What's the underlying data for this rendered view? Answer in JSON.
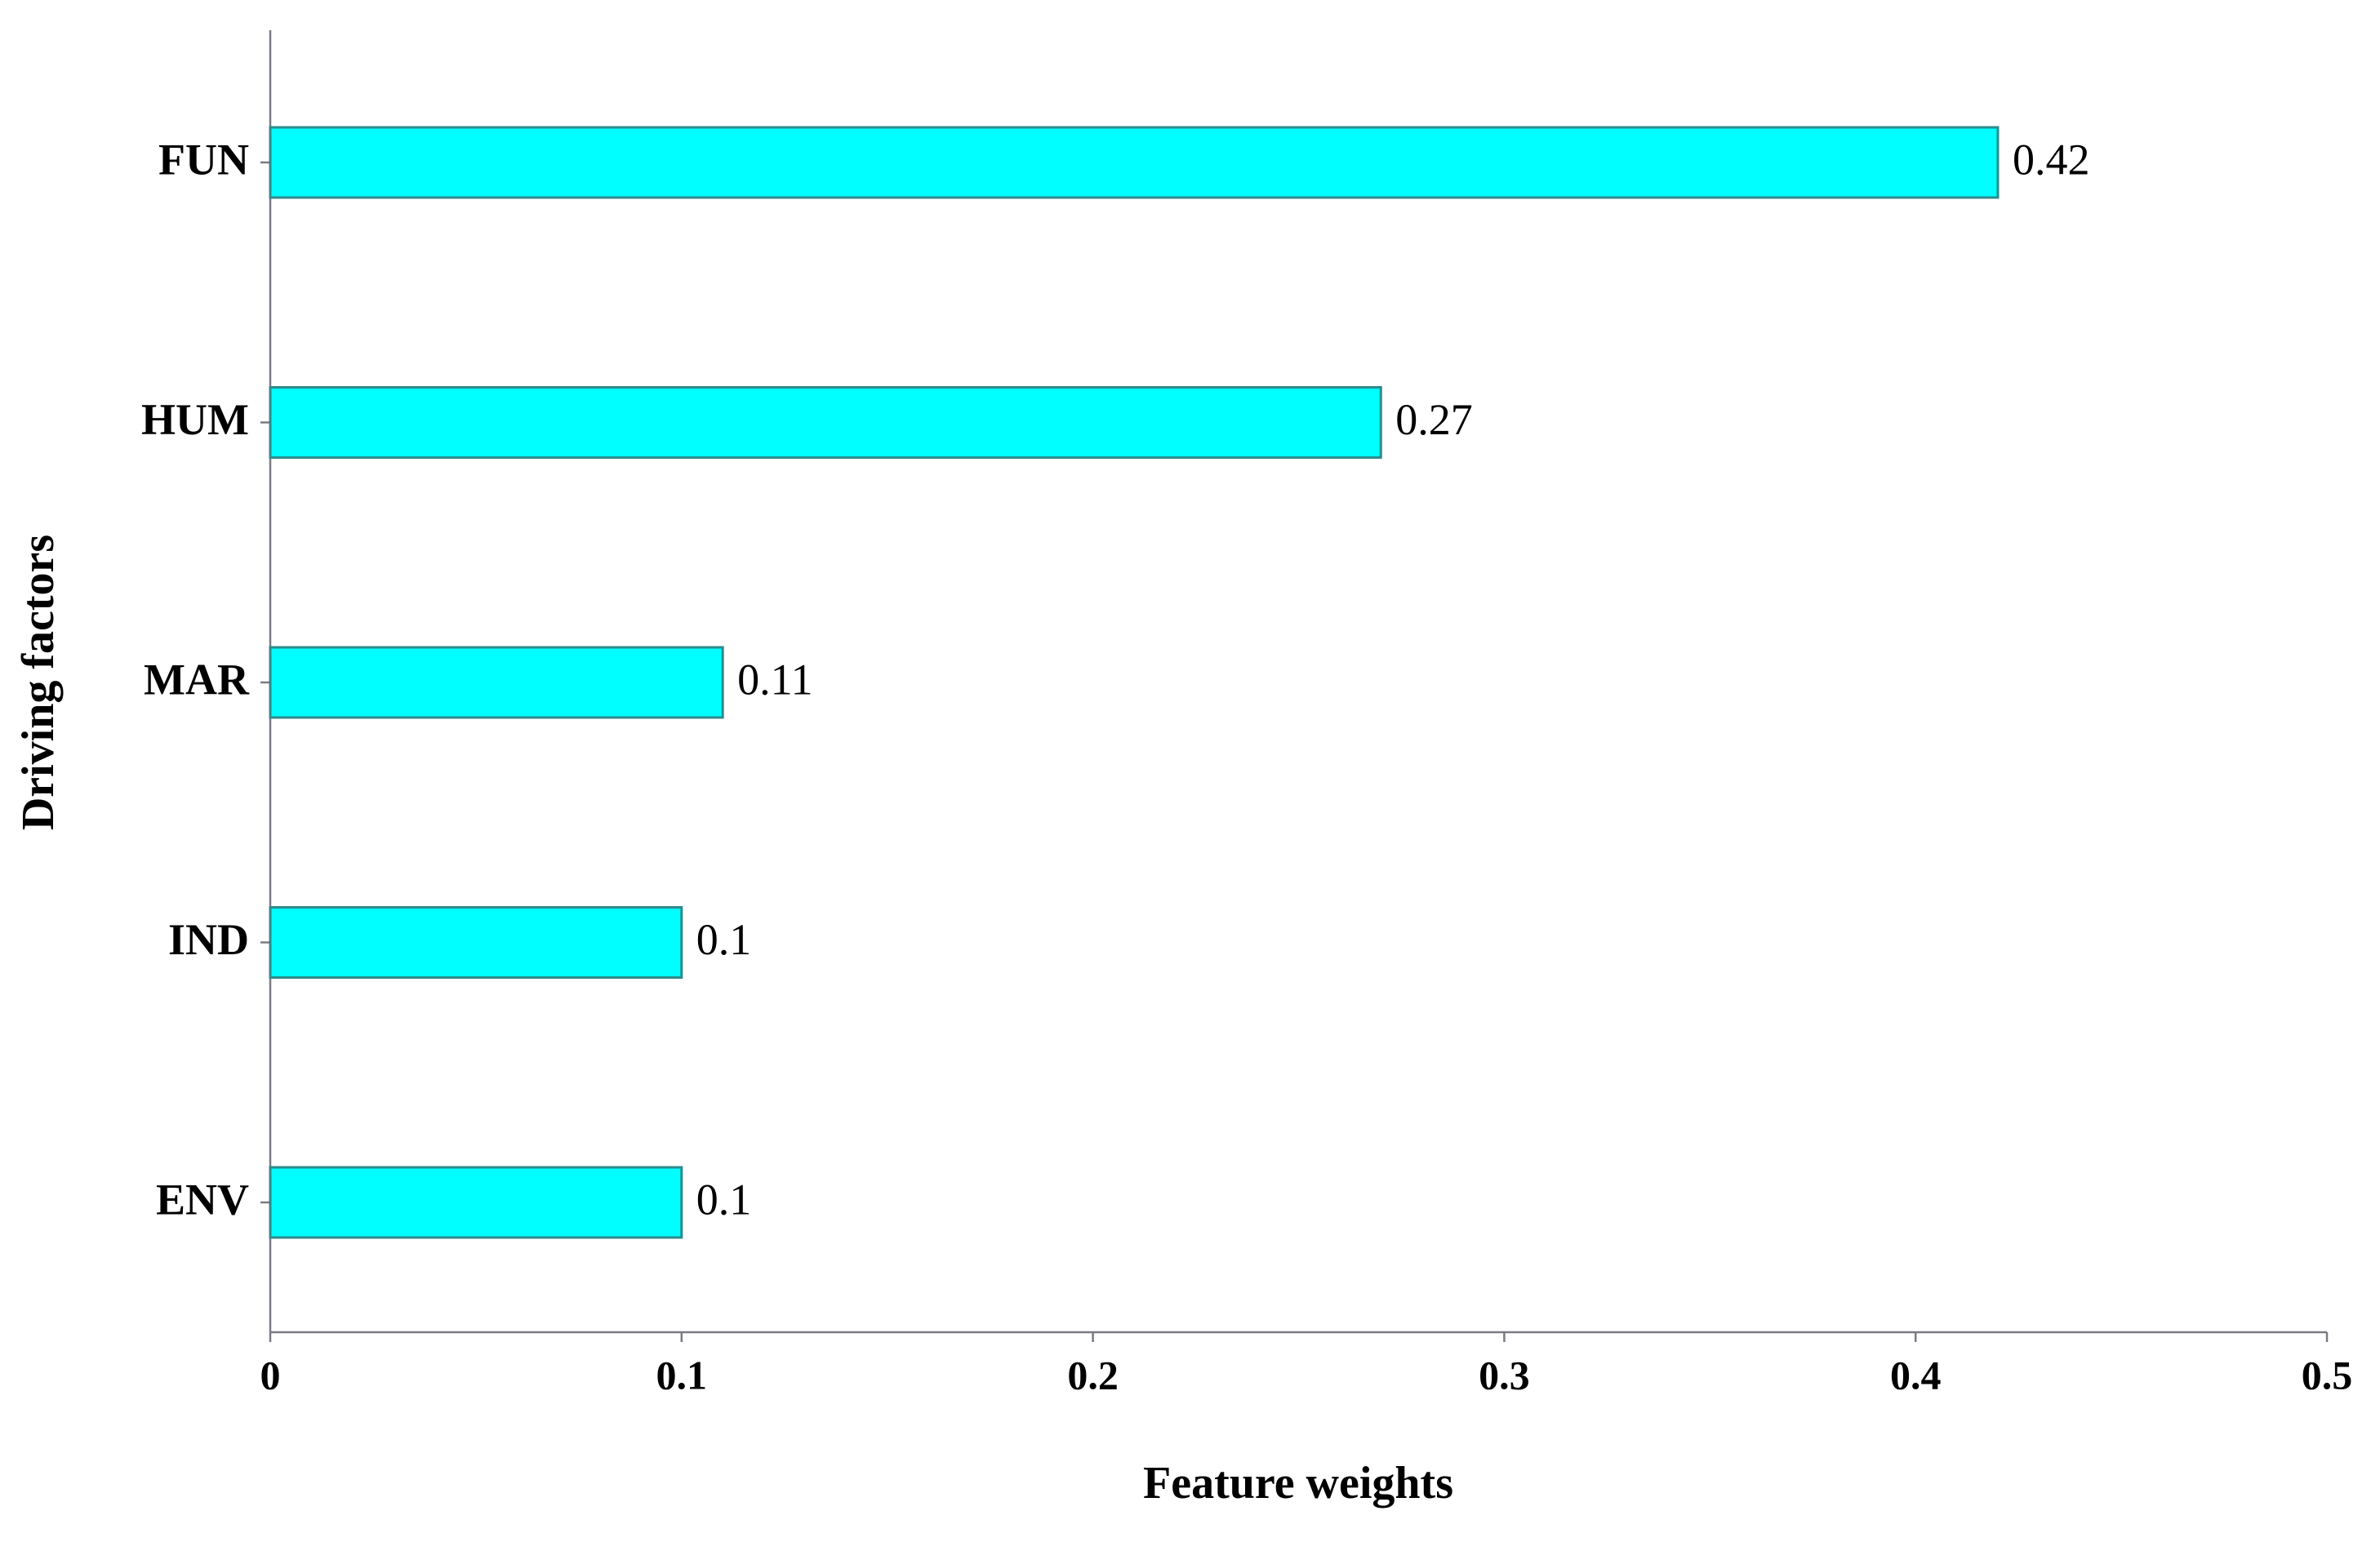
{
  "chart_data": {
    "type": "hbar",
    "x_label": "Feature weights",
    "y_label": "Driving factors",
    "categories": [
      "FUN",
      "HUM",
      "MAR",
      "IND",
      "ENV"
    ],
    "values": [
      0.42,
      0.27,
      0.11,
      0.1,
      0.1
    ],
    "color": "#00ffff",
    "edge_color": "#2e8b8b",
    "xlim": [
      0,
      0.5
    ],
    "xticks": [
      0,
      0.1,
      0.2,
      0.3,
      0.4,
      0.5
    ],
    "grid": false
  }
}
